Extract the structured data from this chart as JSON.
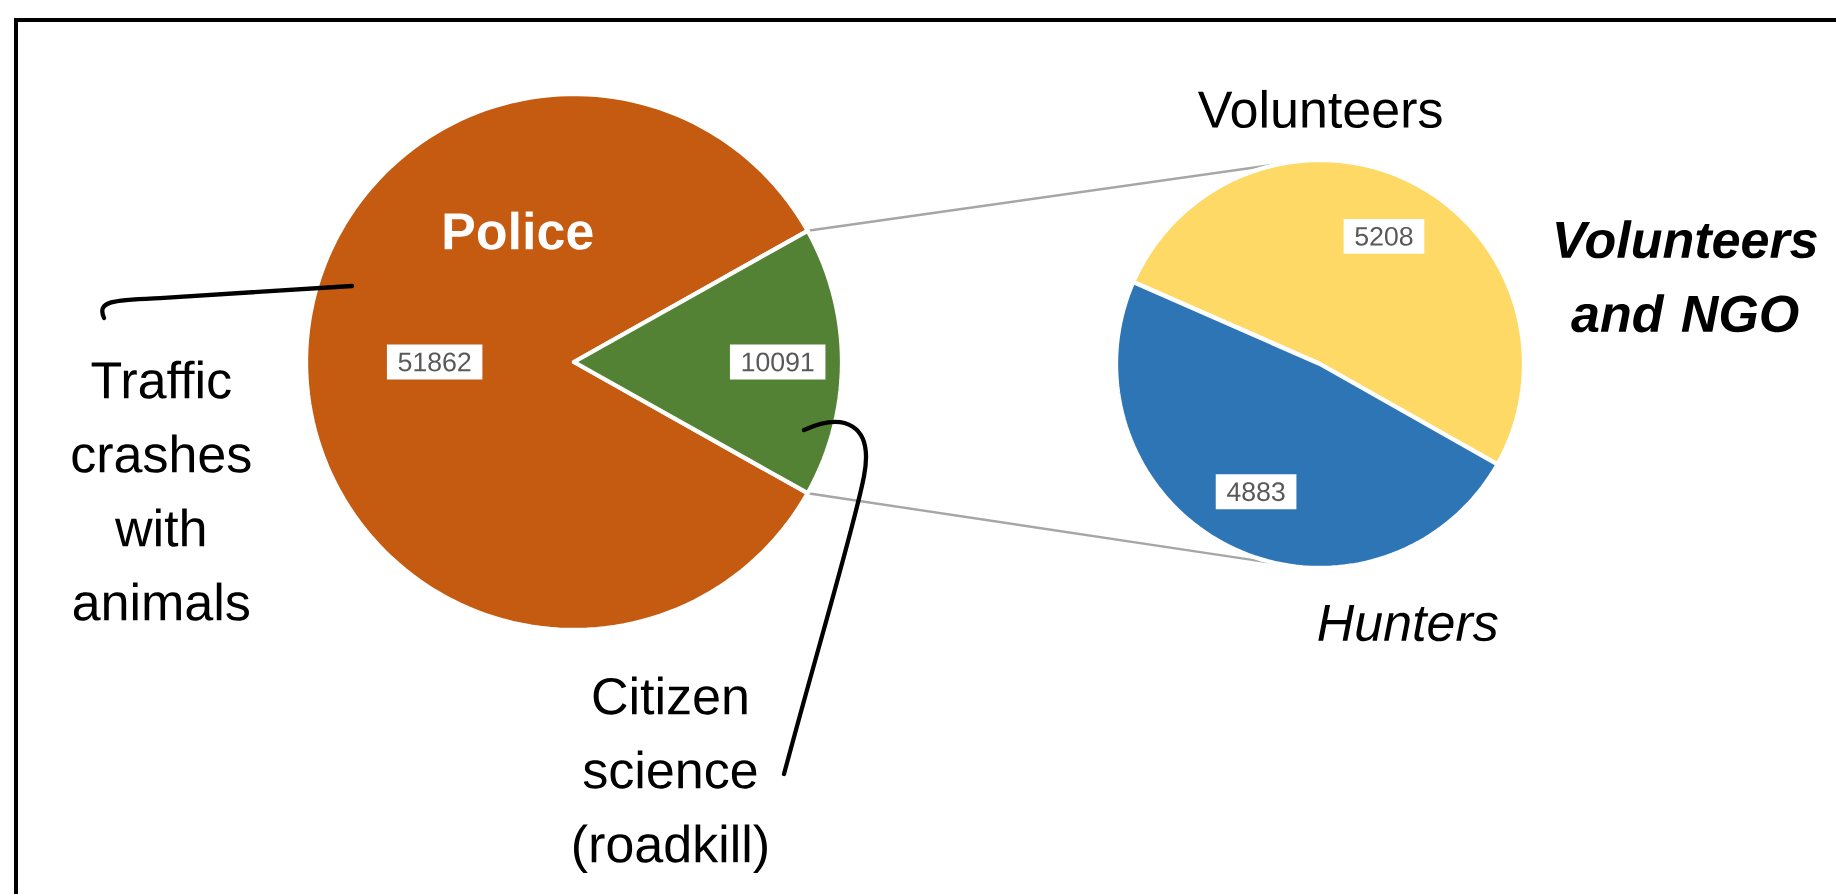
{
  "chart_data": [
    {
      "type": "pie",
      "categories": [
        "Police",
        "Citizen science (roadkill)"
      ],
      "values": [
        51862,
        10091
      ],
      "colors": [
        "#c55a11",
        "#548235"
      ],
      "data_labels": true,
      "annotations": [
        "Traffic crashes with animals"
      ]
    },
    {
      "type": "pie",
      "title": "Volunteers and NGO",
      "categories": [
        "Volunteers",
        "Hunters"
      ],
      "values": [
        5208,
        4883
      ],
      "colors": [
        "#ffd966",
        "#2e75b6"
      ],
      "data_labels": true
    }
  ]
}
